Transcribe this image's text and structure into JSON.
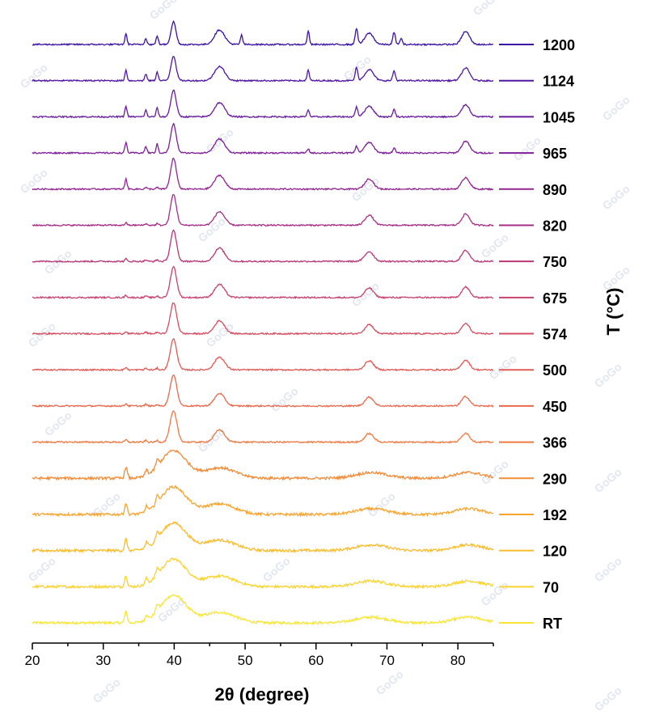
{
  "chart_data": {
    "type": "line",
    "title": "",
    "xlabel": "2θ (degree)",
    "ylabel": "T (°C)",
    "xlim": [
      20,
      85
    ],
    "xticks": [
      20,
      30,
      40,
      50,
      60,
      70,
      80
    ],
    "xtick_labels": [
      "20",
      "30",
      "40",
      "50",
      "60",
      "70",
      "80"
    ],
    "yticks": false,
    "grid": false,
    "legend": "right",
    "watermark": "GoGo",
    "series": [
      {
        "name": "RT",
        "color": "#f9e534"
      },
      {
        "name": "70",
        "color": "#f9d32f"
      },
      {
        "name": "120",
        "color": "#f9bc2c"
      },
      {
        "name": "192",
        "color": "#f8a530"
      },
      {
        "name": "290",
        "color": "#f38c37"
      },
      {
        "name": "366",
        "color": "#ee7a43"
      },
      {
        "name": "450",
        "color": "#e86a4c"
      },
      {
        "name": "500",
        "color": "#df5b55"
      },
      {
        "name": "574",
        "color": "#d54d60"
      },
      {
        "name": "675",
        "color": "#c7426c"
      },
      {
        "name": "750",
        "color": "#b83778"
      },
      {
        "name": "820",
        "color": "#a52e86"
      },
      {
        "name": "890",
        "color": "#912591"
      },
      {
        "name": "965",
        "color": "#7d1f98"
      },
      {
        "name": "1045",
        "color": "#671b9f"
      },
      {
        "name": "1124",
        "color": "#4f16a3"
      },
      {
        "name": "1200",
        "color": "#3a11a2"
      }
    ],
    "peaks_2theta": [
      33.2,
      36.0,
      37.6,
      39.9,
      46.4,
      49.5,
      58.9,
      65.7,
      67.5,
      71.0,
      72.0,
      81.2
    ]
  }
}
